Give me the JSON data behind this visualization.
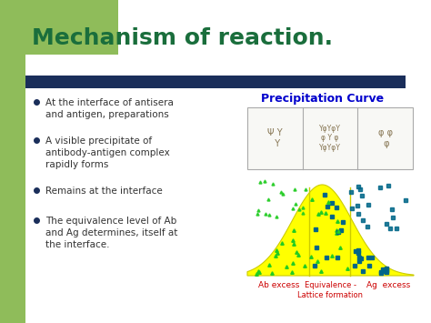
{
  "bg_color": "#f0f0f0",
  "left_bar_color": "#8fbc5a",
  "title": "Mechanism of reaction.",
  "title_color": "#1a6e3c",
  "title_fontsize": 18,
  "dark_bar_color": "#1a2e5a",
  "bullet_points": [
    "At the interface of antisera\nand antigen, preparations",
    "A visible precipitate of\nantibody-antigen complex\nrapidly forms",
    "Remains at the interface",
    "The equivalence level of Ab\nand Ag determines, itself at\nthe interface."
  ],
  "bullet_color": "#333333",
  "bullet_dot_color": "#1a2e5a",
  "precip_title": "Precipitation Curve",
  "precip_title_color": "#0000cc",
  "label_ab": "Ab excess",
  "label_eq": "Equivalence -\nLattice formation",
  "label_ag": "Ag  excess",
  "label_color": "#cc0000",
  "hill_color": "#ffff00",
  "hill_border": "#cccc00",
  "dot_green": "#22cc22",
  "dot_teal": "#006688"
}
